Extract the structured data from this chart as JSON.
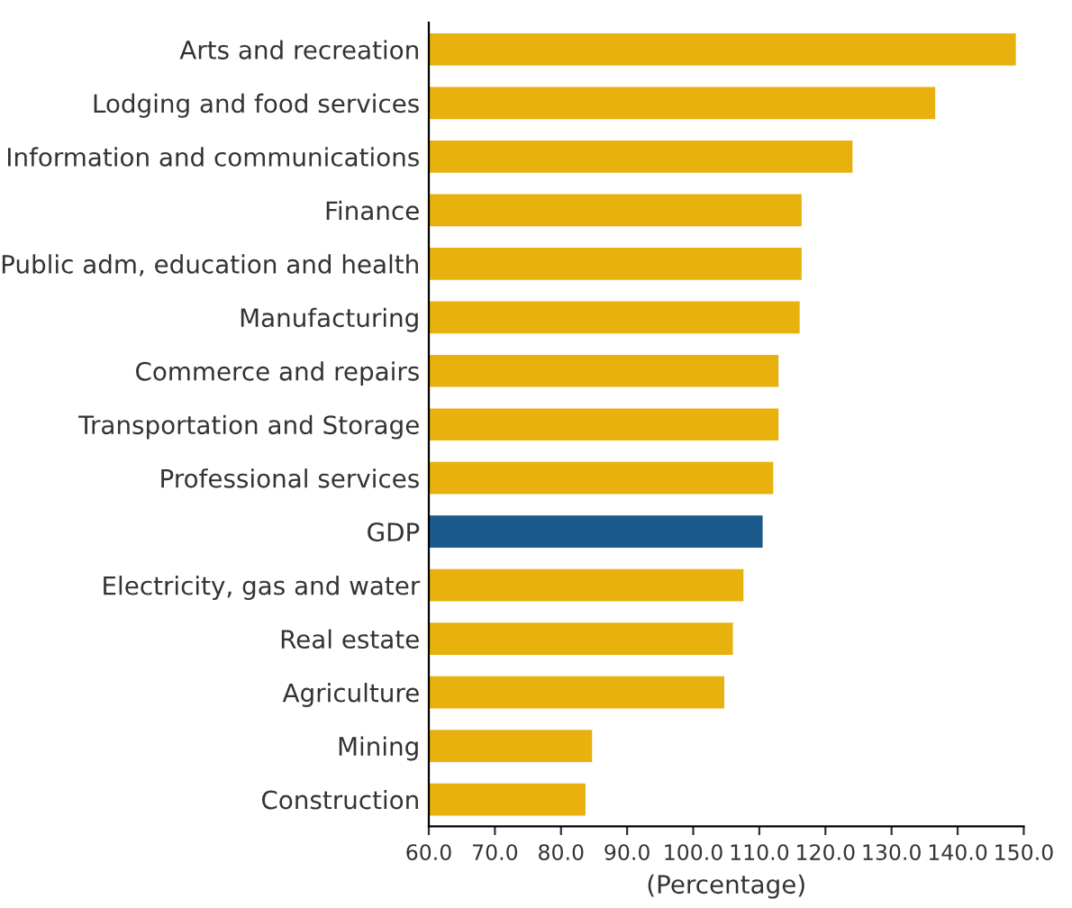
{
  "chart_data": {
    "type": "bar",
    "orientation": "horizontal",
    "xlabel": "(Percentage)",
    "categories": [
      "Arts and recreation",
      "Lodging and food services",
      "Information and communications",
      "Finance",
      "Public adm, education and health",
      "Manufacturing",
      "Commerce and repairs",
      "Transportation and Storage",
      "Professional services",
      "GDP",
      "Electricity, gas and water",
      "Real estate",
      "Agriculture",
      "Mining",
      "Construction"
    ],
    "values": [
      148.8,
      136.6,
      124.1,
      116.4,
      116.4,
      116.1,
      112.9,
      112.9,
      112.1,
      110.5,
      107.6,
      106.0,
      104.7,
      84.7,
      83.7
    ],
    "colors": [
      "#e8b10e",
      "#e8b10e",
      "#e8b10e",
      "#e8b10e",
      "#e8b10e",
      "#e8b10e",
      "#e8b10e",
      "#e8b10e",
      "#e8b10e",
      "#1a5a8a",
      "#e8b10e",
      "#e8b10e",
      "#e8b10e",
      "#e8b10e",
      "#e8b10e"
    ],
    "xlim": [
      60,
      150
    ],
    "xticks": [
      {
        "value": 60,
        "label": "60.0"
      },
      {
        "value": 70,
        "label": "70.0"
      },
      {
        "value": 80,
        "label": "80.0"
      },
      {
        "value": 90,
        "label": "90.0"
      },
      {
        "value": 100,
        "label": "100.0"
      },
      {
        "value": 110,
        "label": "110.0"
      },
      {
        "value": 120,
        "label": "120.0"
      },
      {
        "value": 130,
        "label": "130.0"
      },
      {
        "value": 140,
        "label": "140.0"
      },
      {
        "value": 150,
        "label": "150.0"
      }
    ],
    "grid": false,
    "legend": false
  }
}
